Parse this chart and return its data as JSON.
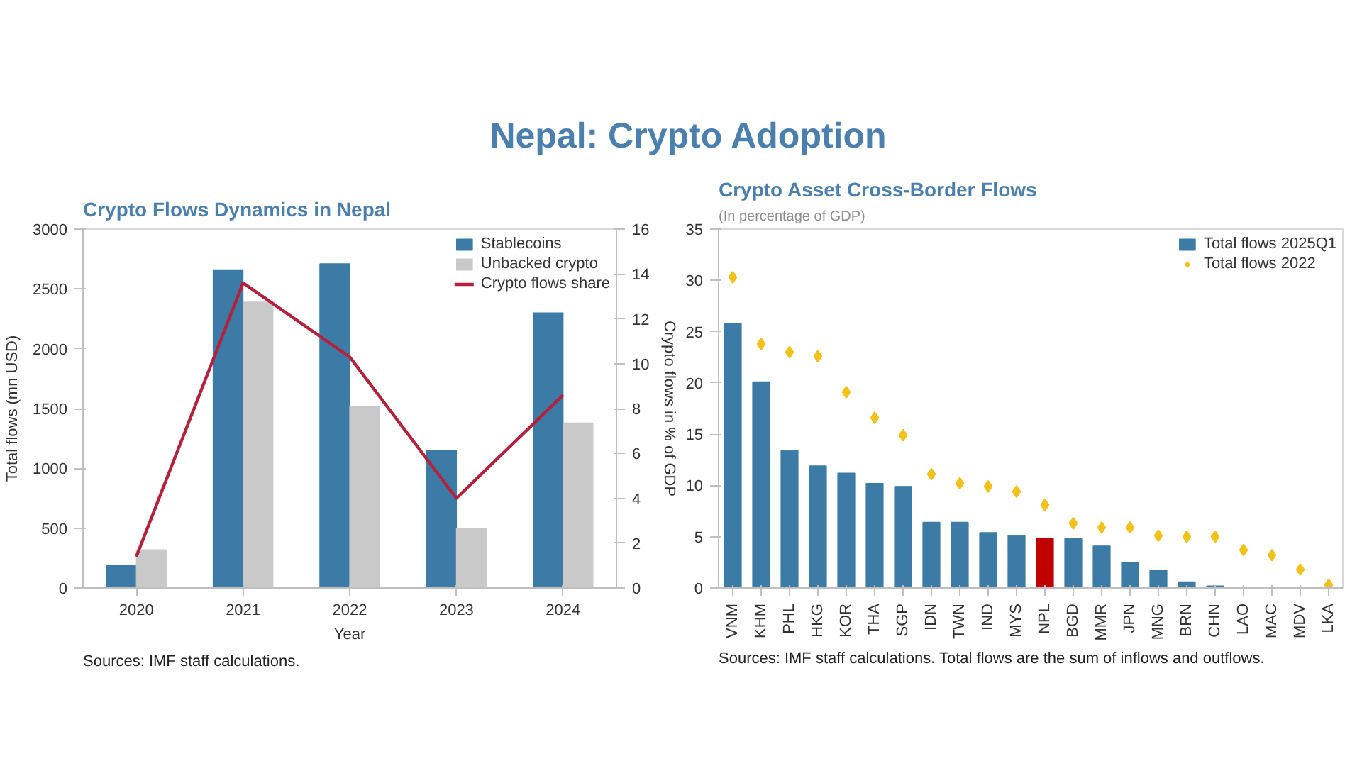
{
  "chart_data": [
    {
      "type": "other",
      "title": "Nepal: Crypto Adoption"
    },
    {
      "type": "bar",
      "title": "Crypto Flows Dynamics in Nepal",
      "xlabel": "Year",
      "ylabel": "Total flows (mn USD)",
      "y2label": "Crypto flows in % of GDP",
      "categories": [
        "2020",
        "2021",
        "2022",
        "2023",
        "2024"
      ],
      "series": [
        {
          "name": "Stablecoins",
          "color": "#3b7ba6",
          "values": [
            190,
            2660,
            2710,
            1150,
            2300
          ]
        },
        {
          "name": "Unbacked crypto",
          "color": "#c9c9c9",
          "values": [
            320,
            2390,
            1520,
            500,
            1380
          ]
        },
        {
          "name": "Crypto flows share",
          "type": "line",
          "axis": "y2",
          "color": "#b5203c",
          "values": [
            1.4,
            13.6,
            10.3,
            4.0,
            8.6
          ]
        }
      ],
      "ylim": [
        0,
        3000
      ],
      "yticks": [
        0,
        500,
        1000,
        1500,
        2000,
        2500,
        3000
      ],
      "y2lim": [
        0,
        16
      ],
      "y2ticks": [
        0,
        2,
        4,
        6,
        8,
        10,
        12,
        14,
        16
      ],
      "legend": "top right",
      "annotations": [
        "Sources: IMF staff calculations."
      ]
    },
    {
      "type": "bar",
      "title": "Crypto Asset Cross-Border Flows",
      "subtitle": "(In percentage of GDP)",
      "categories": [
        "VNM",
        "KHM",
        "PHL",
        "HKG",
        "KOR",
        "THA",
        "SGP",
        "IDN",
        "TWN",
        "IND",
        "MYS",
        "NPL",
        "BGD",
        "MMR",
        "JPN",
        "MNG",
        "BRN",
        "CHN",
        "LAO",
        "MAC",
        "MDV",
        "LKA"
      ],
      "series": [
        {
          "name": "Total flows 2025Q1",
          "colors": [
            "#3b7ba6",
            "#3b7ba6",
            "#3b7ba6",
            "#3b7ba6",
            "#3b7ba6",
            "#3b7ba6",
            "#3b7ba6",
            "#3b7ba6",
            "#3b7ba6",
            "#3b7ba6",
            "#3b7ba6",
            "#c00000",
            "#3b7ba6",
            "#3b7ba6",
            "#3b7ba6",
            "#3b7ba6",
            "#3b7ba6",
            "#3b7ba6",
            "#3b7ba6",
            "#3b7ba6",
            "#3b7ba6",
            "#3b7ba6"
          ],
          "values": [
            25.8,
            20.1,
            13.4,
            11.9,
            11.2,
            10.2,
            9.9,
            6.4,
            6.4,
            5.4,
            5.1,
            4.8,
            4.8,
            4.1,
            2.5,
            1.7,
            0.6,
            0.2,
            0,
            0,
            0,
            0
          ]
        },
        {
          "name": "Total flows 2022",
          "type": "scatter",
          "marker": "diamond",
          "color": "#f2c21b",
          "values": [
            30.3,
            23.8,
            23.0,
            22.6,
            19.1,
            16.6,
            14.9,
            11.1,
            10.2,
            9.9,
            9.4,
            8.1,
            6.3,
            5.9,
            5.9,
            5.1,
            5.0,
            5.0,
            3.7,
            3.2,
            1.8,
            0.3
          ]
        }
      ],
      "ylim": [
        0,
        35
      ],
      "yticks": [
        0,
        5,
        10,
        15,
        20,
        25,
        30,
        35
      ],
      "legend": "top right",
      "annotations": [
        "Sources: IMF staff calculations. Total flows are the sum of inflows and outflows."
      ]
    }
  ]
}
